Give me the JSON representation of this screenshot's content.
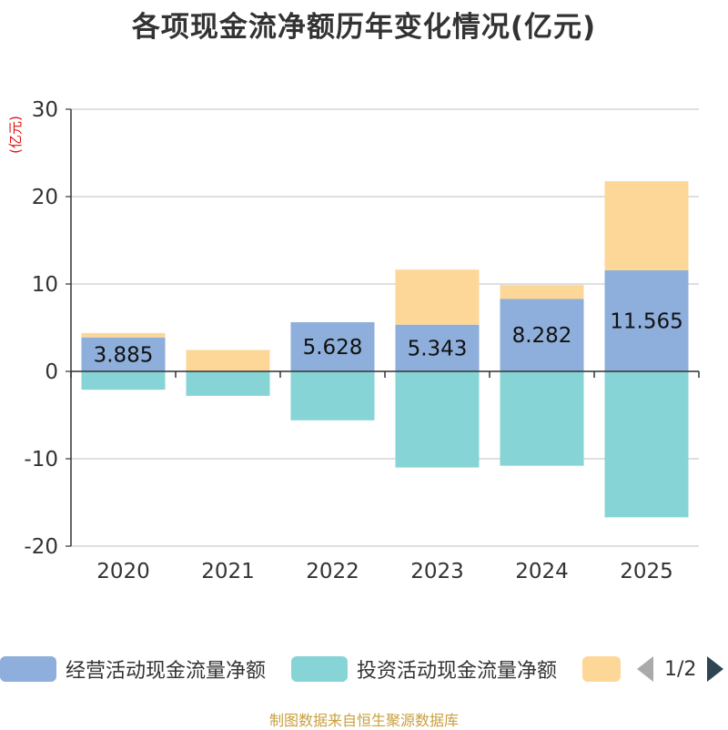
{
  "chart_data": {
    "type": "bar",
    "stacked": true,
    "title": "各项现金流净额历年变化情况(亿元)",
    "ylabel": "(亿元)",
    "xlabel": "",
    "ylim": [
      -20,
      30
    ],
    "yticks": [
      30,
      20,
      10,
      0,
      -10,
      -20
    ],
    "categories": [
      "2020",
      "2021",
      "2022",
      "2023",
      "2024",
      "2025"
    ],
    "series": [
      {
        "name": "经营活动现金流量净额",
        "color": "#8eaedb",
        "values": [
          3.885,
          0.05,
          5.628,
          5.343,
          8.282,
          11.565
        ],
        "labels": [
          "3.885",
          "",
          "5.628",
          "5.343",
          "8.282",
          "11.565"
        ]
      },
      {
        "name": "投资活动现金流量净额",
        "color": "#86d4d6",
        "values": [
          -2.1,
          -2.8,
          -5.6,
          -11.0,
          -10.8,
          -16.7
        ]
      },
      {
        "name": "",
        "color": "#fdd797",
        "values": [
          0.5,
          2.4,
          0.0,
          6.3,
          1.6,
          10.2
        ]
      }
    ]
  },
  "legend": {
    "page_text": "1/2",
    "items": [
      {
        "label": "经营活动现金流量净额",
        "color": "#8eaedb"
      },
      {
        "label": "投资活动现金流量净额",
        "color": "#86d4d6"
      },
      {
        "label": "",
        "color": "#fdd797"
      }
    ]
  },
  "source": "制图数据来自恒生聚源数据库"
}
